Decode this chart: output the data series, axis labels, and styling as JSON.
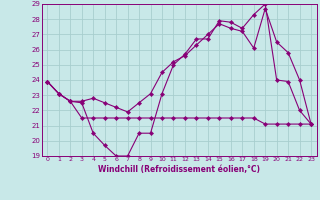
{
  "xlabel": "Windchill (Refroidissement éolien,°C)",
  "xlim": [
    -0.5,
    23.5
  ],
  "ylim": [
    19,
    29
  ],
  "yticks": [
    19,
    20,
    21,
    22,
    23,
    24,
    25,
    26,
    27,
    28,
    29
  ],
  "xticks": [
    0,
    1,
    2,
    3,
    4,
    5,
    6,
    7,
    8,
    9,
    10,
    11,
    12,
    13,
    14,
    15,
    16,
    17,
    18,
    19,
    20,
    21,
    22,
    23
  ],
  "bg_color": "#c8e8e8",
  "grid_color": "#a8cece",
  "line_color": "#880077",
  "line1_x": [
    0,
    1,
    2,
    3,
    4,
    5,
    6,
    7,
    8,
    9,
    10,
    11,
    12,
    13,
    14,
    15,
    16,
    17,
    18,
    19,
    20,
    21,
    22,
    23
  ],
  "line1_y": [
    23.9,
    23.1,
    22.6,
    22.5,
    20.5,
    19.7,
    19.0,
    19.0,
    20.5,
    20.5,
    23.1,
    25.0,
    25.7,
    26.7,
    26.7,
    27.9,
    27.8,
    27.4,
    28.3,
    29.0,
    24.0,
    23.9,
    22.0,
    21.1
  ],
  "line2_x": [
    0,
    1,
    2,
    3,
    4,
    5,
    6,
    7,
    8,
    9,
    10,
    11,
    12,
    13,
    14,
    15,
    16,
    17,
    18,
    19,
    20,
    21,
    22,
    23
  ],
  "line2_y": [
    23.9,
    23.1,
    22.6,
    21.5,
    21.5,
    21.5,
    21.5,
    21.5,
    21.5,
    21.5,
    21.5,
    21.5,
    21.5,
    21.5,
    21.5,
    21.5,
    21.5,
    21.5,
    21.5,
    21.1,
    21.1,
    21.1,
    21.1,
    21.1
  ],
  "line3_x": [
    0,
    1,
    2,
    3,
    4,
    5,
    6,
    7,
    8,
    9,
    10,
    11,
    12,
    13,
    14,
    15,
    16,
    17,
    18,
    19,
    20,
    21,
    22,
    23
  ],
  "line3_y": [
    23.9,
    23.1,
    22.6,
    22.6,
    22.8,
    22.5,
    22.2,
    21.9,
    22.5,
    23.1,
    24.5,
    25.2,
    25.6,
    26.3,
    27.0,
    27.7,
    27.4,
    27.2,
    26.1,
    28.7,
    26.5,
    25.8,
    24.0,
    21.1
  ]
}
